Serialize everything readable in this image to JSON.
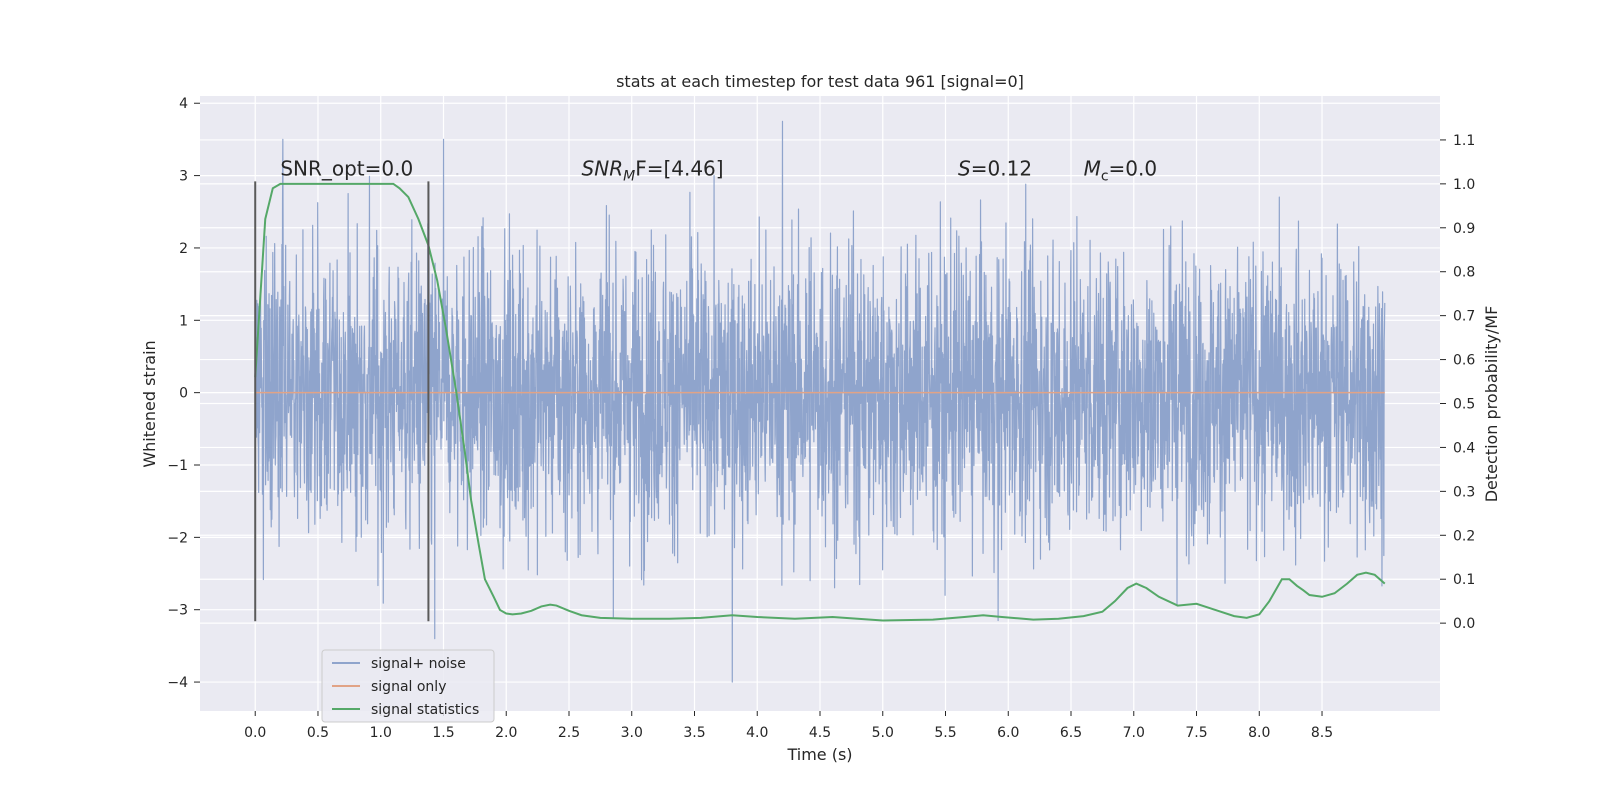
{
  "chart_data": {
    "type": "line",
    "title": "stats at each timestep for test data 961 [signal=0]",
    "xlabel": "Time (s)",
    "ylabel": "Whitened strain",
    "y2label": "Detection probability/MF",
    "xlim": [
      -0.44,
      9.44
    ],
    "ylim": [
      -4.4,
      4.1
    ],
    "y2lim": [
      -0.2,
      1.2
    ],
    "xticks": [
      0.0,
      0.5,
      1.0,
      1.5,
      2.0,
      2.5,
      3.0,
      3.5,
      4.0,
      4.5,
      5.0,
      5.5,
      6.0,
      6.5,
      7.0,
      7.5,
      8.0,
      8.5
    ],
    "xtick_labels": [
      "0.0",
      "0.5",
      "1.0",
      "1.5",
      "2.0",
      "2.5",
      "3.0",
      "3.5",
      "4.0",
      "4.5",
      "5.0",
      "5.5",
      "6.0",
      "6.5",
      "7.0",
      "7.5",
      "8.0",
      "8.5"
    ],
    "yticks": [
      -4,
      -3,
      -2,
      -1,
      0,
      1,
      2,
      3,
      4
    ],
    "ytick_labels": [
      "−4",
      "−3",
      "−2",
      "−1",
      "0",
      "1",
      "2",
      "3",
      "4"
    ],
    "y2ticks": [
      0.0,
      0.1,
      0.2,
      0.3,
      0.4,
      0.5,
      0.6,
      0.7,
      0.8,
      0.9,
      1.0,
      1.1
    ],
    "y2tick_labels": [
      "0.0",
      "0.1",
      "0.2",
      "0.3",
      "0.4",
      "0.5",
      "0.6",
      "0.7",
      "0.8",
      "0.9",
      "1.0",
      "1.1"
    ],
    "noise": {
      "name": "signal+ noise",
      "color": "#8fa4cc",
      "x_start": 0.0,
      "x_end": 9.0,
      "samples": 3600,
      "typical_amplitude": 1.0,
      "peak_amplitude": 3.8,
      "notable_peaks": [
        {
          "x": 0.22,
          "y": 3.5
        },
        {
          "x": 1.5,
          "y": 3.5
        },
        {
          "x": 1.43,
          "y": -3.4
        },
        {
          "x": 3.8,
          "y": -4.0
        },
        {
          "x": 4.2,
          "y": 3.75
        },
        {
          "x": 5.92,
          "y": -3.15
        }
      ]
    },
    "series": [
      {
        "name": "signal only",
        "color": "#e1a386",
        "axis": "left",
        "x": [
          0.0,
          9.0
        ],
        "y": [
          0.0,
          0.0
        ]
      },
      {
        "name": "signal statistics",
        "color": "#55a868",
        "axis": "right",
        "x": [
          0.0,
          0.08,
          0.14,
          0.2,
          0.3,
          0.5,
          0.7,
          0.9,
          1.0,
          1.1,
          1.15,
          1.22,
          1.3,
          1.38,
          1.45,
          1.52,
          1.6,
          1.67,
          1.72,
          1.78,
          1.83,
          1.9,
          1.95,
          2.0,
          2.05,
          2.12,
          2.2,
          2.28,
          2.35,
          2.4,
          2.5,
          2.6,
          2.75,
          3.0,
          3.3,
          3.55,
          3.8,
          4.0,
          4.3,
          4.6,
          5.0,
          5.4,
          5.65,
          5.8,
          5.95,
          6.2,
          6.4,
          6.6,
          6.75,
          6.85,
          6.95,
          7.02,
          7.1,
          7.2,
          7.35,
          7.5,
          7.65,
          7.8,
          7.9,
          8.0,
          8.08,
          8.18,
          8.24,
          8.3,
          8.35,
          8.4,
          8.5,
          8.6,
          8.7,
          8.78,
          8.85,
          8.92,
          9.0
        ],
        "y": [
          0.56,
          0.92,
          0.99,
          1.0,
          1.0,
          1.0,
          1.0,
          1.0,
          1.0,
          1.0,
          0.99,
          0.97,
          0.92,
          0.86,
          0.78,
          0.67,
          0.53,
          0.39,
          0.28,
          0.18,
          0.1,
          0.06,
          0.03,
          0.022,
          0.02,
          0.022,
          0.028,
          0.038,
          0.042,
          0.04,
          0.028,
          0.018,
          0.012,
          0.01,
          0.01,
          0.012,
          0.018,
          0.014,
          0.01,
          0.014,
          0.006,
          0.008,
          0.014,
          0.018,
          0.014,
          0.008,
          0.01,
          0.016,
          0.026,
          0.05,
          0.08,
          0.09,
          0.08,
          0.06,
          0.04,
          0.044,
          0.03,
          0.016,
          0.012,
          0.02,
          0.05,
          0.1,
          0.1,
          0.085,
          0.075,
          0.064,
          0.06,
          0.068,
          0.09,
          0.11,
          0.115,
          0.11,
          0.09
        ]
      }
    ],
    "vlines": [
      {
        "x": 0.0,
        "y_from": -3.16,
        "y_to": 2.92,
        "color": "#5a5a5a"
      },
      {
        "x": 1.38,
        "y_from": -3.16,
        "y_to": 2.92,
        "color": "#5a5a5a"
      }
    ],
    "annotations": [
      {
        "text": "SNR_opt=0.0",
        "x": 0.2,
        "y": 3.0
      },
      {
        "text_main": "SNR",
        "text_sub": "M",
        "text_tail": "F=[4.46]",
        "x": 2.6,
        "y": 3.0
      },
      {
        "text_main": "S",
        "text_tail": "=0.12",
        "x": 5.6,
        "y": 3.0
      },
      {
        "text_main": "M",
        "text_sub": "c",
        "text_tail": "=0.0",
        "x": 6.6,
        "y": 3.0
      }
    ],
    "legend": {
      "position": "lower-left",
      "entries": [
        "signal+ noise",
        "signal only",
        "signal statistics"
      ]
    },
    "grid": true
  }
}
